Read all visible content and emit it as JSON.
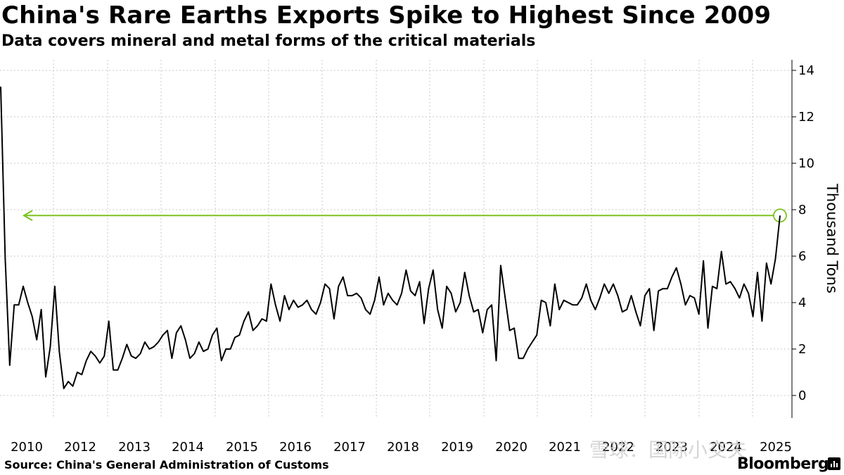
{
  "title": "China's Rare Earths Exports Spike to Highest Since 2009",
  "subtitle": "Data covers mineral and metal forms of the critical materials",
  "source": "Source: China's General Administration of Customs",
  "brand": "Bloomberg",
  "watermark": "雪球：国际小交夫",
  "colors": {
    "line": "#000000",
    "highlight": "#7dc21e",
    "grid": "#c8c8c8"
  },
  "chart_data": {
    "type": "line",
    "title": "China's Rare Earths Exports Spike to Highest Since 2009",
    "subtitle": "Data covers mineral and metal forms of the critical materials",
    "xlabel": "",
    "ylabel": "Thousand Tons",
    "ylim": [
      -1,
      14.5
    ],
    "yticks": [
      0,
      2,
      4,
      6,
      8,
      10,
      12,
      14
    ],
    "xtick_labels": [
      "2010",
      "2012",
      "2013",
      "2014",
      "2015",
      "2016",
      "2017",
      "2018",
      "2019",
      "2020",
      "2021",
      "2022",
      "2023",
      "2024",
      "2025"
    ],
    "grid": true,
    "y_axis_position": "right",
    "annotation": {
      "type": "horizontal-arrow",
      "y": 7.75,
      "direction": "left",
      "highlight_last_point": true
    },
    "series": [
      {
        "values": [
          13.3,
          5.9,
          1.3,
          3.9,
          3.9,
          4.7,
          4.0,
          3.4,
          2.4,
          3.7,
          0.8,
          2.1,
          4.7,
          1.9,
          0.3,
          0.6,
          0.4,
          1.0,
          0.9,
          1.5,
          1.9,
          1.7,
          1.4,
          1.7,
          3.2,
          1.1,
          1.1,
          1.6,
          2.2,
          1.7,
          1.6,
          1.8,
          2.3,
          2.0,
          2.1,
          2.3,
          2.6,
          2.8,
          1.6,
          2.7,
          3.0,
          2.4,
          1.6,
          1.8,
          2.3,
          1.9,
          2.0,
          2.6,
          2.9,
          1.5,
          2.0,
          2.0,
          2.5,
          2.6,
          3.2,
          3.6,
          2.8,
          3.0,
          3.3,
          3.2,
          4.8,
          3.9,
          3.2,
          4.3,
          3.7,
          4.1,
          3.8,
          3.9,
          4.1,
          3.7,
          3.5,
          4.0,
          4.8,
          4.6,
          3.3,
          4.7,
          5.1,
          4.3,
          4.3,
          4.4,
          4.2,
          3.7,
          3.5,
          4.1,
          5.1,
          3.9,
          4.4,
          4.1,
          3.9,
          4.4,
          5.4,
          4.5,
          4.3,
          4.9,
          3.1,
          4.6,
          5.4,
          3.7,
          2.9,
          4.7,
          4.4,
          3.6,
          4.0,
          5.3,
          4.3,
          3.6,
          3.7,
          2.7,
          3.7,
          3.9,
          1.5,
          5.6,
          4.2,
          2.8,
          2.9,
          1.6,
          1.6,
          2.0,
          2.3,
          2.6,
          4.1,
          4.0,
          3.0,
          4.8,
          3.7,
          4.1,
          4.0,
          3.9,
          3.9,
          4.2,
          4.8,
          4.1,
          3.7,
          4.2,
          4.8,
          4.4,
          4.8,
          4.3,
          3.6,
          3.7,
          4.3,
          3.6,
          3.0,
          4.3,
          4.6,
          2.8,
          4.5,
          4.6,
          4.6,
          5.1,
          5.5,
          4.8,
          3.9,
          4.3,
          4.2,
          3.5,
          5.8,
          2.9,
          4.7,
          4.6,
          6.2,
          4.8,
          4.9,
          4.6,
          4.2,
          4.8,
          4.4,
          3.4,
          5.3,
          3.2,
          5.7,
          4.8,
          5.9,
          7.75
        ]
      }
    ]
  }
}
